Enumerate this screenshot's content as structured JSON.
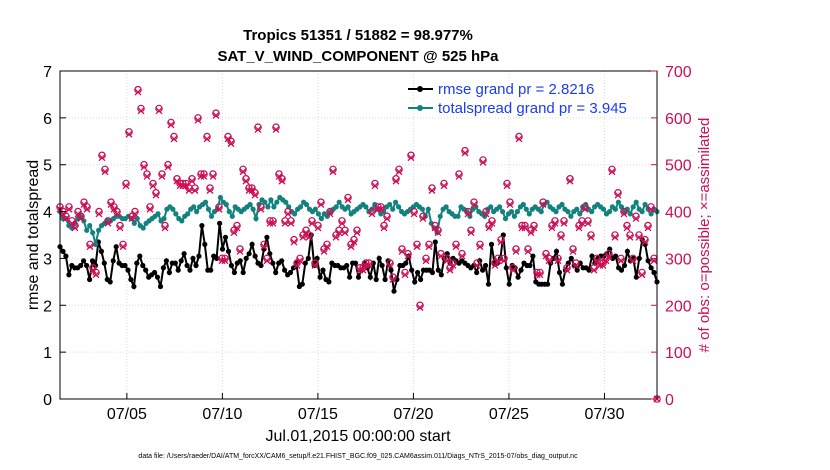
{
  "chart_data": {
    "type": "line",
    "title": "Tropics 51351 / 51882 = 98.977%",
    "subtitle": "SAT_V_WIND_COMPONENT @ 525 hPa",
    "xlabel": "Jul.01,2015 00:00:00 start",
    "ylabel": "rmse and totalspread",
    "ylabel_right": "# of obs: o=possible; ×=assimilated",
    "footer": "data file: /Users/raeder/DAI/ATM_forcXX/CAM6_setup/f.e21.FHIST_BGC.f09_025.CAM6assim.011/Diags_NTrS_2015-07/obs_diag_output.nc",
    "x_range_days": [
      0.5,
      31.75
    ],
    "x_tick_days": [
      4,
      9,
      14,
      19,
      24,
      29
    ],
    "x_tick_labels": [
      "07/05",
      "07/10",
      "07/15",
      "07/20",
      "07/25",
      "07/30"
    ],
    "ylim_left": [
      0,
      7
    ],
    "ylim_right": [
      0,
      700
    ],
    "y_ticks_left": [
      "0",
      "1",
      "2",
      "3",
      "4",
      "5",
      "6",
      "7"
    ],
    "y_ticks_right": [
      "0",
      "100",
      "200",
      "300",
      "400",
      "500",
      "600",
      "700"
    ],
    "legend_placement": "top-right",
    "series": [
      {
        "name": "rmse grand pr = 2.8216",
        "color": "#000000",
        "marker": "filled-circle",
        "axis": "left",
        "values": [
          3.25,
          3.15,
          3.05,
          2.65,
          2.85,
          2.8,
          2.8,
          2.85,
          2.95,
          2.85,
          2.55,
          2.95,
          2.85,
          3.35,
          3.15,
          2.9,
          2.55,
          2.5,
          2.95,
          3.25,
          2.9,
          2.85,
          2.85,
          2.75,
          2.55,
          2.4,
          2.9,
          3.05,
          2.85,
          2.75,
          2.6,
          2.65,
          2.7,
          2.6,
          2.4,
          2.8,
          2.95,
          2.7,
          2.9,
          2.9,
          2.75,
          2.95,
          3.1,
          2.85,
          2.75,
          3.0,
          2.85,
          3.05,
          3.7,
          3.3,
          2.75,
          2.75,
          3.05,
          3.0,
          3.75,
          3.2,
          3.45,
          3.15,
          2.85,
          2.7,
          2.9,
          2.95,
          2.7,
          3.0,
          3.1,
          3.3,
          3.05,
          2.9,
          2.85,
          3.2,
          3.45,
          3.1,
          2.9,
          2.7,
          2.9,
          2.95,
          2.75,
          2.65,
          2.7,
          2.8,
          2.9,
          2.4,
          2.45,
          2.9,
          3.0,
          3.5,
          2.85,
          3.0,
          2.6,
          2.75,
          2.55,
          2.5,
          2.9,
          2.85,
          2.85,
          2.8,
          2.8,
          2.85,
          2.6,
          2.9,
          2.9,
          2.6,
          2.75,
          2.9,
          2.8,
          2.6,
          2.9,
          2.55,
          3.0,
          2.85,
          2.55,
          2.95,
          2.75,
          2.3,
          2.55,
          2.85,
          2.85,
          2.9,
          3.05,
          2.75,
          2.5,
          2.7,
          2.55,
          2.75,
          2.75,
          2.75,
          2.7,
          3.35,
          2.75,
          2.65,
          3.0,
          3.1,
          2.9,
          3.0,
          2.95,
          2.9,
          2.95,
          2.9,
          2.85,
          2.8,
          2.85,
          2.7,
          2.95,
          2.75,
          2.85,
          2.45,
          3.3,
          2.9,
          2.9,
          3.0,
          3.5,
          2.8,
          2.45,
          2.85,
          2.8,
          2.6,
          2.75,
          2.9,
          2.85,
          2.85,
          3.05,
          2.5,
          2.45,
          2.45,
          2.45,
          2.45,
          2.9,
          3.0,
          3.15,
          2.7,
          2.45,
          2.75,
          2.9,
          3.0,
          2.85,
          2.75,
          2.9,
          2.8,
          2.8,
          2.75,
          3.05,
          2.9,
          3.0,
          3.05,
          3.05,
          3.1,
          3.2,
          3.0,
          3.05,
          2.8,
          2.75,
          2.85,
          3.15,
          2.95,
          3.0,
          2.6,
          3.0,
          3.4,
          3.3,
          2.95,
          2.8,
          2.7,
          2.5
        ]
      },
      {
        "name": "totalspread grand pr = 3.945",
        "color": "#12827e",
        "marker": "filled-circle",
        "axis": "left",
        "values": [
          4.0,
          3.85,
          3.85,
          3.7,
          3.65,
          3.75,
          3.85,
          3.9,
          3.8,
          3.6,
          3.7,
          3.55,
          3.3,
          3.6,
          3.7,
          3.75,
          3.8,
          3.8,
          3.85,
          3.9,
          3.9,
          3.85,
          3.85,
          3.9,
          3.85,
          3.75,
          3.85,
          3.7,
          3.65,
          3.75,
          3.8,
          3.85,
          3.9,
          3.95,
          3.8,
          3.85,
          4.05,
          4.1,
          4.05,
          3.95,
          3.85,
          3.8,
          3.9,
          3.95,
          4.05,
          4.1,
          4.0,
          4.1,
          4.15,
          4.2,
          4.05,
          3.9,
          4.0,
          4.05,
          4.3,
          4.2,
          4.15,
          4.0,
          3.9,
          4.1,
          4.05,
          4.0,
          4.05,
          4.1,
          4.15,
          4.05,
          3.85,
          4.15,
          4.25,
          4.2,
          4.1,
          4.25,
          4.1,
          4.2,
          4.3,
          4.25,
          4.2,
          4.1,
          4.0,
          3.95,
          4.05,
          4.1,
          4.2,
          4.15,
          4.05,
          4.0,
          4.05,
          3.95,
          3.85,
          3.95,
          3.9,
          4.0,
          4.05,
          4.1,
          4.2,
          4.1,
          4.05,
          4.1,
          3.95,
          4.0,
          4.05,
          4.1,
          4.15,
          4.1,
          4.0,
          4.05,
          4.15,
          4.05,
          3.95,
          4.0,
          4.1,
          4.15,
          4.05,
          4.2,
          4.1,
          4.0,
          3.95,
          4.0,
          4.05,
          4.1,
          4.15,
          4.1,
          4.05,
          3.9,
          4.05,
          3.75,
          3.65,
          3.55,
          3.9,
          4.05,
          4.1,
          4.0,
          3.95,
          3.9,
          3.9,
          4.1,
          4.05,
          4.0,
          3.9,
          4.05,
          4.1,
          4.0,
          3.95,
          3.9,
          4.05,
          4.1,
          4.0,
          4.05,
          4.1,
          4.0,
          3.85,
          3.95,
          4.0,
          3.9,
          4.0,
          4.1,
          4.15,
          4.05,
          3.95,
          4.05,
          4.1,
          4.05,
          4.0,
          4.15,
          4.2,
          4.1,
          4.05,
          4.0,
          4.1,
          4.15,
          4.05,
          4.0,
          3.9,
          4.0,
          4.05,
          3.95,
          4.1,
          4.15,
          4.05,
          4.0,
          4.1,
          4.15,
          4.1,
          4.05,
          3.95,
          4.0,
          4.1,
          4.05,
          4.2,
          4.1,
          4.0,
          4.05,
          3.95,
          4.1,
          4.2,
          4.05,
          4.0,
          4.15,
          4.05,
          3.95,
          4.05,
          4.0
        ]
      },
      {
        "name": "obs possible (o)",
        "color": "#cc0f55",
        "marker": "circle",
        "axis": "right",
        "values": [
          410,
          400,
          390,
          410,
          380,
          370,
          400,
          390,
          420,
          410,
          330,
          280,
          270,
          400,
          520,
          490,
          380,
          420,
          410,
          400,
          370,
          330,
          460,
          570,
          390,
          400,
          660,
          620,
          500,
          480,
          410,
          460,
          440,
          620,
          480,
          370,
          500,
          590,
          560,
          470,
          460,
          460,
          460,
          450,
          470,
          450,
          600,
          480,
          480,
          560,
          450,
          480,
          610,
          410,
          300,
          300,
          560,
          550,
          360,
          370,
          320,
          490,
          470,
          450,
          450,
          440,
          580,
          410,
          330,
          300,
          380,
          380,
          580,
          480,
          470,
          380,
          400,
          380,
          340,
          290,
          300,
          350,
          360,
          350,
          380,
          290,
          370,
          420,
          320,
          330,
          400,
          490,
          350,
          360,
          380,
          360,
          430,
          330,
          340,
          360,
          280,
          280,
          290,
          290,
          400,
          460,
          410,
          410,
          370,
          390,
          290,
          260,
          470,
          490,
          320,
          270,
          310,
          520,
          400,
          330,
          200,
          390,
          300,
          330,
          450,
          370,
          360,
          310,
          460,
          300,
          280,
          290,
          330,
          480,
          310,
          530,
          400,
          360,
          420,
          290,
          330,
          510,
          400,
          370,
          380,
          290,
          300,
          340,
          300,
          460,
          420,
          280,
          320,
          560,
          370,
          370,
          320,
          360,
          370,
          270,
          270,
          420,
          310,
          300,
          370,
          380,
          300,
          350,
          380,
          280,
          470,
          320,
          290,
          370,
          380,
          410,
          380,
          350,
          280,
          300,
          290,
          290,
          300,
          310,
          490,
          350,
          440,
          300,
          400,
          370,
          350,
          300,
          390,
          350,
          270,
          340,
          370,
          410,
          300,
          0
        ]
      },
      {
        "name": "obs assimilated (×)",
        "color": "#cc0f55",
        "marker": "x",
        "axis": "right",
        "values": [
          405,
          395,
          385,
          405,
          375,
          365,
          395,
          385,
          415,
          405,
          325,
          275,
          265,
          395,
          515,
          485,
          375,
          415,
          405,
          395,
          365,
          325,
          455,
          565,
          385,
          395,
          655,
          615,
          495,
          475,
          405,
          455,
          435,
          615,
          475,
          365,
          495,
          585,
          555,
          465,
          455,
          455,
          455,
          445,
          465,
          445,
          595,
          475,
          475,
          555,
          445,
          475,
          605,
          405,
          295,
          295,
          555,
          545,
          355,
          365,
          315,
          485,
          465,
          445,
          445,
          435,
          575,
          405,
          325,
          295,
          375,
          375,
          575,
          475,
          465,
          375,
          395,
          375,
          335,
          285,
          295,
          345,
          355,
          345,
          375,
          285,
          365,
          415,
          315,
          325,
          395,
          485,
          345,
          355,
          375,
          355,
          425,
          325,
          335,
          355,
          275,
          275,
          285,
          285,
          395,
          455,
          405,
          405,
          365,
          385,
          285,
          255,
          465,
          485,
          315,
          265,
          305,
          515,
          395,
          325,
          195,
          385,
          295,
          325,
          445,
          365,
          355,
          305,
          455,
          295,
          275,
          285,
          325,
          475,
          305,
          525,
          395,
          355,
          415,
          285,
          325,
          505,
          395,
          365,
          375,
          285,
          295,
          335,
          295,
          455,
          415,
          275,
          315,
          555,
          365,
          365,
          315,
          355,
          365,
          265,
          265,
          415,
          305,
          295,
          365,
          375,
          295,
          345,
          375,
          275,
          465,
          315,
          285,
          365,
          375,
          405,
          375,
          345,
          275,
          295,
          285,
          285,
          295,
          305,
          485,
          345,
          435,
          295,
          395,
          365,
          345,
          295,
          385,
          345,
          265,
          335,
          365,
          405,
          295,
          0
        ]
      }
    ]
  }
}
